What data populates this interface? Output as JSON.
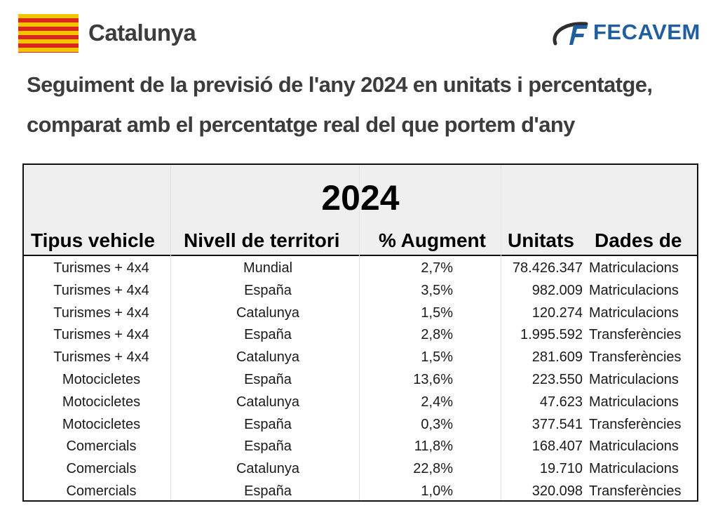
{
  "header": {
    "region": "Catalunya",
    "logo_text": "FECAVEM",
    "flag_icon": "catalan-flag-icon",
    "logo_icon": "fecavem-logo-icon",
    "colors": {
      "flag_yellow": "#f5c400",
      "flag_red": "#d8281c",
      "logo_blue": "#1f5fa0"
    }
  },
  "title": {
    "line1": "Seguiment de la previsió de l'any 2024 en unitats i percentatge,",
    "line2": "comparat amb el percentatge real del que portem d'any"
  },
  "table": {
    "year": "2024",
    "columns": [
      "Tipus vehicle",
      "Nivell de territori",
      "% Augment",
      "Unitats",
      "Dades de"
    ],
    "rows": [
      [
        "Turismes + 4x4",
        "Mundial",
        "2,7%",
        "78.426.347",
        "Matriculacions"
      ],
      [
        "Turismes + 4x4",
        "España",
        "3,5%",
        "982.009",
        "Matriculacions"
      ],
      [
        "Turismes + 4x4",
        "Catalunya",
        "1,5%",
        "120.274",
        "Matriculacions"
      ],
      [
        "Turismes + 4x4",
        "España",
        "2,8%",
        "1.995.592",
        "Transferències"
      ],
      [
        "Turismes + 4x4",
        "Catalunya",
        "1,5%",
        "281.609",
        "Transferències"
      ],
      [
        "Motocicletes",
        "España",
        "13,6%",
        "223.550",
        "Matriculacions"
      ],
      [
        "Motocicletes",
        "Catalunya",
        "2,4%",
        "47.623",
        "Matriculacions"
      ],
      [
        "Motocicletes",
        "España",
        "0,3%",
        "377.541",
        "Transferències"
      ],
      [
        "Comercials",
        "España",
        "11,8%",
        "168.407",
        "Matriculacions"
      ],
      [
        "Comercials",
        "Catalunya",
        "22,8%",
        "19.710",
        "Matriculacions"
      ],
      [
        "Comercials",
        "España",
        "1,0%",
        "320.098",
        "Transferències"
      ]
    ]
  }
}
